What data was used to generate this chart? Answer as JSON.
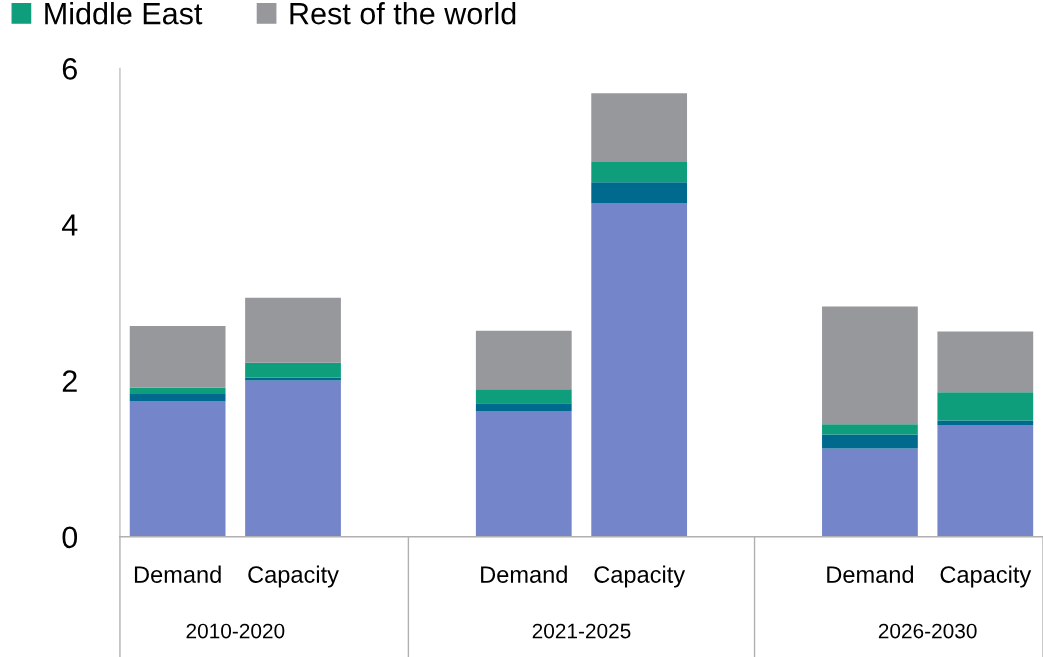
{
  "chart_data": {
    "type": "bar",
    "stacked": true,
    "categories": [
      "Demand",
      "Capacity",
      null,
      "Demand",
      "Capacity",
      null,
      "Demand",
      "Capacity"
    ],
    "series": [
      {
        "color": "#7486c9",
        "values": [
          1.74,
          2.0,
          null,
          1.61,
          4.27,
          null,
          1.13,
          1.43
        ]
      },
      {
        "color": "#006a8e",
        "values": [
          0.09,
          0.04,
          null,
          0.1,
          0.27,
          null,
          0.18,
          0.06
        ]
      },
      {
        "name": "Middle East",
        "color": "#0f9e7c",
        "values": [
          0.08,
          0.19,
          null,
          0.18,
          0.26,
          null,
          0.13,
          0.36
        ]
      },
      {
        "name": "Rest of the world",
        "color": "#97989c",
        "values": [
          0.79,
          0.83,
          null,
          0.75,
          0.88,
          null,
          1.51,
          0.78
        ]
      }
    ],
    "ylim": [
      0,
      6
    ],
    "yticks": [
      0,
      2,
      4,
      6
    ],
    "grid": false,
    "legend": "top",
    "annotations": [
      "2010-2020",
      "2021-2025",
      "2026-2030"
    ]
  }
}
